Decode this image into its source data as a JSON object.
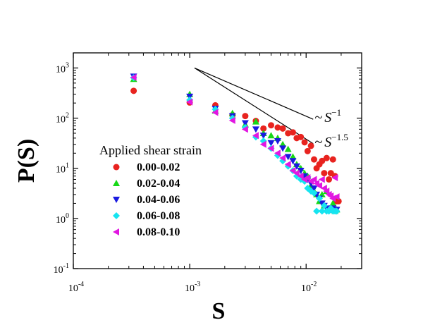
{
  "chart_data": {
    "type": "scatter",
    "xscale": "log",
    "yscale": "log",
    "xlabel": "S",
    "ylabel": "P(S)",
    "xlim": [
      0.0001,
      0.03
    ],
    "ylim": [
      0.1,
      2000
    ],
    "x_ticks": [
      {
        "base": "10",
        "exp": "-4",
        "value": 0.0001
      },
      {
        "base": "10",
        "exp": "-3",
        "value": 0.001
      },
      {
        "base": "10",
        "exp": "-2",
        "value": 0.01
      }
    ],
    "y_ticks": [
      {
        "base": "10",
        "exp": "-1",
        "value": 0.1
      },
      {
        "base": "10",
        "exp": "0",
        "value": 1
      },
      {
        "base": "10",
        "exp": "1",
        "value": 10
      },
      {
        "base": "10",
        "exp": "2",
        "value": 100
      },
      {
        "base": "10",
        "exp": "3",
        "value": 1000
      }
    ],
    "legend": {
      "title": "Applied shear strain",
      "position": "lower-left"
    },
    "series": [
      {
        "name": "0.00-0.02",
        "color": "#e8231f",
        "marker": "circle",
        "points": [
          [
            0.00033,
            350
          ],
          [
            0.001,
            205
          ],
          [
            0.00166,
            180
          ],
          [
            0.00233,
            115
          ],
          [
            0.003,
            110
          ],
          [
            0.0037,
            88
          ],
          [
            0.0043,
            62
          ],
          [
            0.005,
            72
          ],
          [
            0.0057,
            65
          ],
          [
            0.0063,
            62
          ],
          [
            0.007,
            50
          ],
          [
            0.0077,
            52
          ],
          [
            0.0083,
            40
          ],
          [
            0.009,
            42
          ],
          [
            0.0097,
            33
          ],
          [
            0.0103,
            22
          ],
          [
            0.011,
            28
          ],
          [
            0.0117,
            15
          ],
          [
            0.0123,
            10
          ],
          [
            0.013,
            12
          ],
          [
            0.0137,
            14
          ],
          [
            0.0143,
            8
          ],
          [
            0.015,
            16
          ],
          [
            0.0157,
            6
          ],
          [
            0.0163,
            8
          ],
          [
            0.017,
            15
          ],
          [
            0.0177,
            7
          ],
          [
            0.0183,
            2.2
          ],
          [
            0.019,
            2.2
          ]
        ]
      },
      {
        "name": "0.02-0.04",
        "color": "#17d817",
        "marker": "triangle-up",
        "points": [
          [
            0.00033,
            600
          ],
          [
            0.001,
            300
          ],
          [
            0.00166,
            140
          ],
          [
            0.00233,
            125
          ],
          [
            0.003,
            75
          ],
          [
            0.0037,
            85
          ],
          [
            0.0043,
            50
          ],
          [
            0.005,
            45
          ],
          [
            0.0057,
            40
          ],
          [
            0.0063,
            30
          ],
          [
            0.007,
            24
          ],
          [
            0.0077,
            17
          ],
          [
            0.0083,
            12
          ],
          [
            0.009,
            10
          ],
          [
            0.0097,
            8
          ],
          [
            0.0103,
            7
          ],
          [
            0.011,
            4.5
          ],
          [
            0.0117,
            3.5
          ],
          [
            0.0123,
            3
          ],
          [
            0.013,
            2.2
          ],
          [
            0.0137,
            3
          ],
          [
            0.0143,
            1.8
          ],
          [
            0.015,
            3.5
          ],
          [
            0.0157,
            1.5
          ],
          [
            0.0163,
            1.6
          ],
          [
            0.017,
            2
          ],
          [
            0.0177,
            1.4
          ],
          [
            0.0183,
            1.5
          ]
        ]
      },
      {
        "name": "0.04-0.06",
        "color": "#1a1ae0",
        "marker": "triangle-down",
        "points": [
          [
            0.00033,
            680
          ],
          [
            0.001,
            270
          ],
          [
            0.00166,
            155
          ],
          [
            0.00233,
            110
          ],
          [
            0.003,
            80
          ],
          [
            0.0037,
            60
          ],
          [
            0.0043,
            45
          ],
          [
            0.005,
            32
          ],
          [
            0.0057,
            35
          ],
          [
            0.0063,
            25
          ],
          [
            0.007,
            17
          ],
          [
            0.0077,
            14
          ],
          [
            0.0083,
            11
          ],
          [
            0.009,
            9
          ],
          [
            0.0097,
            7
          ],
          [
            0.0103,
            6
          ],
          [
            0.011,
            5
          ],
          [
            0.0117,
            4
          ],
          [
            0.0123,
            3
          ],
          [
            0.013,
            2.5
          ],
          [
            0.0137,
            2
          ],
          [
            0.0143,
            1.8
          ],
          [
            0.015,
            1.6
          ],
          [
            0.0157,
            1.5
          ],
          [
            0.0163,
            1.5
          ],
          [
            0.017,
            1.6
          ],
          [
            0.0177,
            1.5
          ],
          [
            0.0183,
            1.5
          ]
        ]
      },
      {
        "name": "0.06-0.08",
        "color": "#16e4f0",
        "marker": "diamond",
        "points": [
          [
            0.00033,
            640
          ],
          [
            0.001,
            230
          ],
          [
            0.00166,
            150
          ],
          [
            0.00233,
            100
          ],
          [
            0.003,
            65
          ],
          [
            0.0037,
            42
          ],
          [
            0.0043,
            35
          ],
          [
            0.005,
            25
          ],
          [
            0.0057,
            18
          ],
          [
            0.0063,
            14
          ],
          [
            0.007,
            11
          ],
          [
            0.0077,
            9
          ],
          [
            0.0083,
            7
          ],
          [
            0.009,
            6
          ],
          [
            0.0097,
            5.5
          ],
          [
            0.0103,
            4
          ],
          [
            0.011,
            3.5
          ],
          [
            0.0117,
            3.2
          ],
          [
            0.0123,
            1.4
          ],
          [
            0.013,
            2.5
          ],
          [
            0.0137,
            1.4
          ],
          [
            0.0143,
            1.8
          ],
          [
            0.015,
            1.4
          ],
          [
            0.0157,
            1.4
          ],
          [
            0.0163,
            1.6
          ],
          [
            0.017,
            1.4
          ],
          [
            0.0177,
            1.4
          ],
          [
            0.0183,
            1.4
          ]
        ]
      },
      {
        "name": "0.08-0.10",
        "color": "#e117e1",
        "marker": "triangle-left",
        "points": [
          [
            0.00033,
            650
          ],
          [
            0.001,
            210
          ],
          [
            0.00166,
            130
          ],
          [
            0.00233,
            90
          ],
          [
            0.003,
            60
          ],
          [
            0.0037,
            45
          ],
          [
            0.0043,
            30
          ],
          [
            0.005,
            25
          ],
          [
            0.0057,
            20
          ],
          [
            0.0063,
            16
          ],
          [
            0.007,
            12
          ],
          [
            0.0077,
            9
          ],
          [
            0.0083,
            8
          ],
          [
            0.009,
            7
          ],
          [
            0.0097,
            6
          ],
          [
            0.0103,
            6.5
          ],
          [
            0.011,
            5.5
          ],
          [
            0.0117,
            6
          ],
          [
            0.0123,
            5
          ],
          [
            0.013,
            4.5
          ],
          [
            0.0137,
            6
          ],
          [
            0.0143,
            4
          ],
          [
            0.015,
            3.5
          ],
          [
            0.0157,
            3
          ],
          [
            0.0163,
            2.8
          ],
          [
            0.017,
            2.5
          ],
          [
            0.0177,
            6.5
          ],
          [
            0.0183,
            2.7
          ]
        ]
      }
    ],
    "reference_lines": [
      {
        "label_base": "S",
        "label_exp": "−1",
        "x": [
          0.0011,
          0.0115
        ],
        "y": [
          1000,
          95
        ]
      },
      {
        "label_base": "S",
        "label_exp": "−1.5",
        "x": [
          0.0011,
          0.0115
        ],
        "y": [
          1000,
          31
        ]
      }
    ]
  }
}
